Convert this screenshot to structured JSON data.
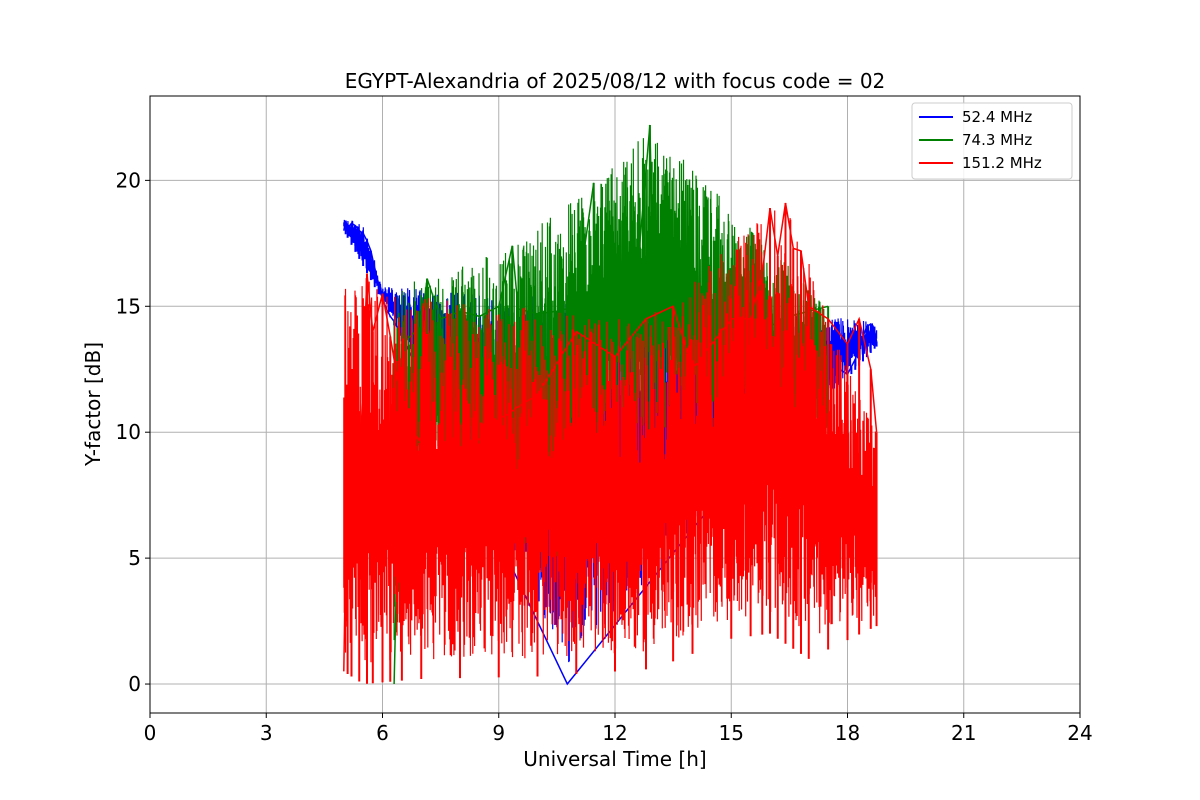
{
  "chart_data": {
    "type": "line",
    "title": "EGYPT-Alexandria of 2025/08/12 with focus code = 02",
    "xlabel": "Universal Time [h]",
    "ylabel": "Y-factor [dB]",
    "xlim": [
      0,
      24
    ],
    "ylim": [
      -1.15,
      23.35
    ],
    "xticks": [
      0,
      3,
      6,
      9,
      12,
      15,
      18,
      21,
      24
    ],
    "yticks": [
      0,
      5,
      10,
      15,
      20
    ],
    "grid": true,
    "legend_position": "top-right",
    "series": [
      {
        "name": "  52.4 MHz",
        "color": "#0000ff",
        "x": [
          5.0,
          5.05,
          5.1,
          5.2,
          5.3,
          5.4,
          5.5,
          5.6,
          5.7,
          5.8,
          5.9,
          6.0,
          6.1,
          6.2,
          6.3,
          6.4,
          6.5,
          10.77,
          17.5,
          17.8,
          18.0,
          18.1,
          18.2,
          18.3,
          18.4,
          18.5,
          18.6,
          18.7,
          18.75
        ],
        "y": [
          18.0,
          18.4,
          18.1,
          18.3,
          18.2,
          18.0,
          17.9,
          17.6,
          17.2,
          16.5,
          15.8,
          15.3,
          14.9,
          14.6,
          14.4,
          14.1,
          13.8,
          0.0,
          12.8,
          12.5,
          12.3,
          12.6,
          12.9,
          13.3,
          13.8,
          14.2,
          14.3,
          14.0,
          13.6
        ],
        "min_envelope": [
          [
            5.0,
            18.0
          ],
          [
            6.0,
            15.2
          ],
          [
            10.77,
            0.0
          ],
          [
            18.75,
            13.4
          ]
        ],
        "max_envelope": [
          [
            5.0,
            18.5
          ],
          [
            5.5,
            18.3
          ],
          [
            6.0,
            15.8
          ],
          [
            18.5,
            14.5
          ],
          [
            18.75,
            14.2
          ]
        ]
      },
      {
        "name": "  74.3 MHz",
        "color": "#008000",
        "x": [
          6.3,
          6.5,
          7.0,
          7.15,
          7.5,
          8.0,
          8.5,
          9.0,
          9.35,
          9.5,
          10.0,
          10.5,
          11.0,
          11.45,
          11.5,
          12.0,
          12.5,
          12.9,
          13.0,
          13.5,
          14.0,
          14.5,
          15.0,
          15.5,
          16.0,
          16.5,
          17.0,
          17.5
        ],
        "y": [
          0.0,
          13.5,
          14.2,
          16.1,
          14.5,
          14.8,
          14.6,
          15.0,
          17.4,
          14.9,
          14.7,
          14.8,
          15.0,
          19.9,
          14.9,
          15.1,
          15.0,
          22.2,
          15.0,
          14.9,
          14.8,
          14.5,
          14.4,
          14.3,
          14.2,
          14.6,
          14.8,
          15.0
        ],
        "min_envelope": [
          [
            6.3,
            0.0
          ],
          [
            7.0,
            9.5
          ],
          [
            10.0,
            3.6
          ],
          [
            12.0,
            9.5
          ],
          [
            17.5,
            9.8
          ]
        ],
        "max_envelope": [
          [
            7.15,
            16.1
          ],
          [
            9.35,
            17.4
          ],
          [
            11.45,
            19.9
          ],
          [
            12.9,
            22.2
          ],
          [
            17.5,
            15.0
          ]
        ]
      },
      {
        "name": "  151.2 MHz",
        "color": "#ff0000",
        "x": [
          5.0,
          5.1,
          5.2,
          5.4,
          5.6,
          5.75,
          6.0,
          6.2,
          6.5,
          7.0,
          8.0,
          9.0,
          10.0,
          11.0,
          12.0,
          12.8,
          13.5,
          14.0,
          15.0,
          15.5,
          15.8,
          16.0,
          16.2,
          16.4,
          16.6,
          16.8,
          17.0,
          17.5,
          18.0,
          18.3,
          18.6,
          18.75
        ],
        "y": [
          0.5,
          10.5,
          12.5,
          8.0,
          16.3,
          14.0,
          15.5,
          13.8,
          11.0,
          9.5,
          9.0,
          10.5,
          11.5,
          14.0,
          13.0,
          14.5,
          15.0,
          12.5,
          14.5,
          14.5,
          16.3,
          18.9,
          17.0,
          19.1,
          17.3,
          17.2,
          15.0,
          14.5,
          13.5,
          14.5,
          12.5,
          10.0
        ],
        "min_envelope": [
          [
            5.0,
            0.5
          ],
          [
            5.5,
            0.0
          ],
          [
            7.0,
            0.2
          ],
          [
            10.0,
            0.3
          ],
          [
            13.0,
            0.6
          ],
          [
            15.0,
            1.8
          ],
          [
            16.0,
            2.0
          ],
          [
            17.0,
            1.0
          ],
          [
            18.75,
            2.3
          ]
        ],
        "max_envelope": [
          [
            5.75,
            16.3
          ],
          [
            6.0,
            15.5
          ],
          [
            12.8,
            14.5
          ],
          [
            16.0,
            18.9
          ],
          [
            16.4,
            19.1
          ],
          [
            18.75,
            10.0
          ]
        ]
      }
    ]
  }
}
